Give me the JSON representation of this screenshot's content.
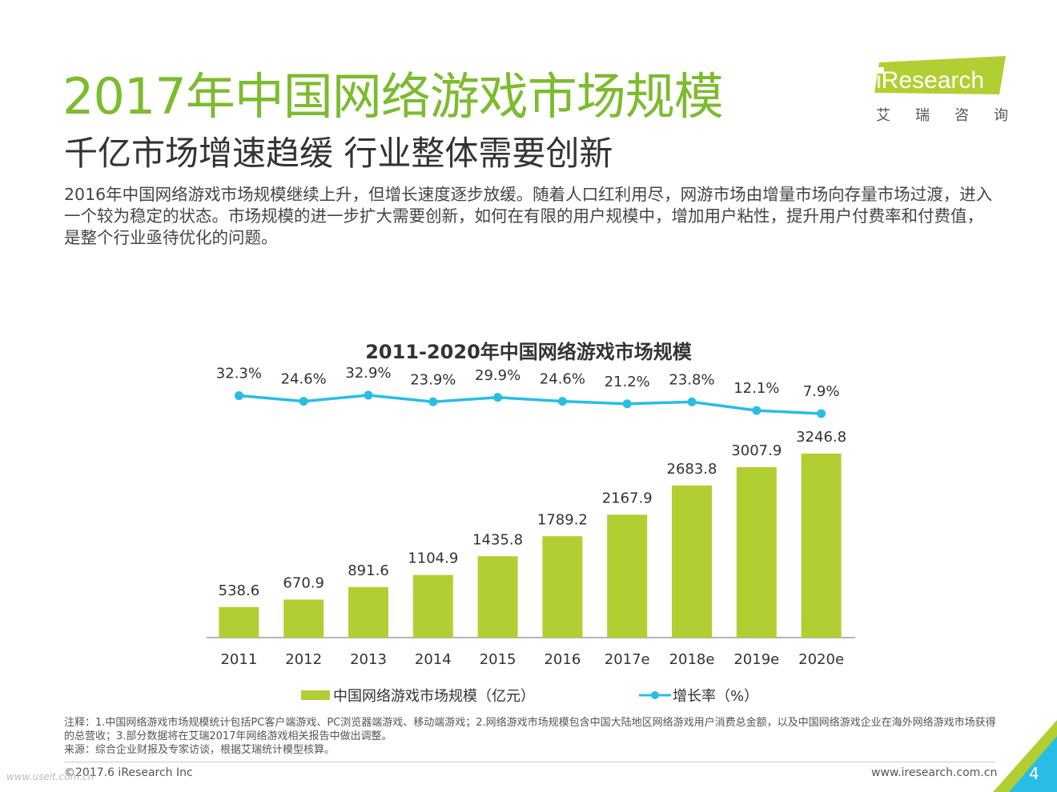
{
  "header": {
    "title": "2017年中国网络游戏市场规模",
    "subtitle": "千亿市场增速趋缓 行业整体需要创新",
    "intro": "2016年中国网络游戏市场规模继续上升，但增长速度逐步放缓。随着人口红利用尽，网游市场由增量市场向存量市场过渡，进入一个较为稳定的状态。市场规模的进一步扩大需要创新，如何在有限的用户规模中，增加用户粘性，提升用户付费率和付费值，是整个行业亟待优化的问题。"
  },
  "logo": {
    "brand": "iResearch",
    "chinese": "艾瑞咨询"
  },
  "colors": {
    "title_green": "#7dbb2f",
    "bar": "#b1cf32",
    "line": "#29bde6",
    "accent_blue": "#29bde6"
  },
  "chart_data": {
    "type": "bar",
    "title": "2011-2020年中国网络游戏市场规模",
    "categories": [
      "2011",
      "2012",
      "2013",
      "2014",
      "2015",
      "2016",
      "2017e",
      "2018e",
      "2019e",
      "2020e"
    ],
    "series": [
      {
        "name": "中国网络游戏市场规模（亿元）",
        "type": "bar",
        "values": [
          538.6,
          670.9,
          891.6,
          1104.9,
          1435.8,
          1789.2,
          2167.9,
          2683.8,
          3007.9,
          3246.8
        ],
        "labels": [
          "538.6",
          "670.9",
          "891.6",
          "1104.9",
          "1435.8",
          "1789.2",
          "2167.9",
          "2683.8",
          "3007.9",
          "3246.8"
        ]
      },
      {
        "name": "增长率（%）",
        "type": "line",
        "values": [
          32.3,
          24.6,
          32.9,
          23.9,
          29.9,
          24.6,
          21.2,
          23.8,
          12.1,
          7.9
        ],
        "labels": [
          "32.3%",
          "24.6%",
          "32.9%",
          "23.9%",
          "29.9%",
          "24.6%",
          "21.2%",
          "23.8%",
          "12.1%",
          "7.9%"
        ]
      }
    ],
    "legend": [
      "中国网络游戏市场规模（亿元）",
      "增长率（%）"
    ],
    "legend_position": "bottom",
    "grid": false
  },
  "notes": {
    "note": "注释：1.中国网络游戏市场规模统计包括PC客户端游戏、PC浏览器端游戏、移动端游戏；2.网络游戏市场规模包含中国大陆地区网络游戏用户消费总金额，以及中国网络游戏企业在海外网络游戏市场获得的总营收；3.部分数据将在艾瑞2017年网络游戏相关报告中做出调整。",
    "source": "来源：综合企业财报及专家访谈，根据艾瑞统计模型核算。"
  },
  "footer": {
    "copyright": "©2017.6 iResearch Inc",
    "website": "www.iresearch.com.cn",
    "page_number": "4",
    "watermark": "www.useit.com.cn"
  }
}
